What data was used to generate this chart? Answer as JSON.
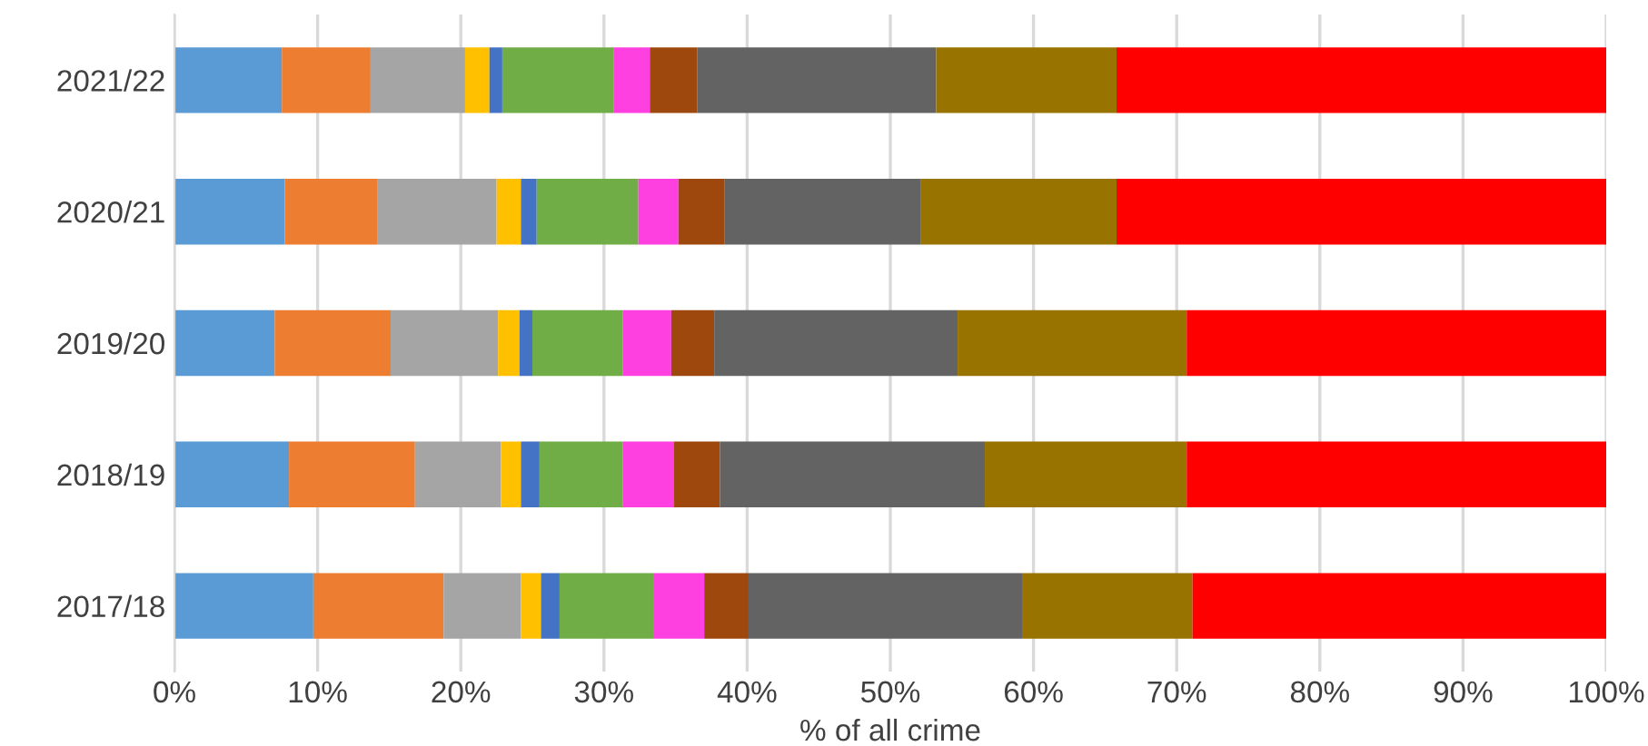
{
  "chart_data": {
    "type": "bar",
    "orientation": "horizontal",
    "stacked": true,
    "xlabel": "% of all crime",
    "categories": [
      "2021/22",
      "2020/21",
      "2019/20",
      "2018/19",
      "2017/18"
    ],
    "series": [
      {
        "color": "#5b9bd5",
        "values": [
          7.5,
          7.7,
          7.0,
          8.0,
          9.7
        ]
      },
      {
        "color": "#ed7d31",
        "values": [
          6.2,
          6.5,
          8.1,
          8.8,
          9.1
        ]
      },
      {
        "color": "#a5a5a5",
        "values": [
          6.6,
          8.3,
          7.5,
          6.0,
          5.4
        ]
      },
      {
        "color": "#ffc000",
        "values": [
          1.7,
          1.7,
          1.5,
          1.4,
          1.4
        ]
      },
      {
        "color": "#4472c4",
        "values": [
          0.9,
          1.1,
          0.9,
          1.3,
          1.3
        ]
      },
      {
        "color": "#70ad47",
        "values": [
          7.8,
          7.1,
          6.3,
          5.8,
          6.6
        ]
      },
      {
        "color": "#ff40e0",
        "values": [
          2.5,
          2.8,
          3.4,
          3.6,
          3.5
        ]
      },
      {
        "color": "#9e480e",
        "values": [
          3.3,
          3.2,
          3.0,
          3.2,
          3.1
        ]
      },
      {
        "color": "#636363",
        "values": [
          16.7,
          13.7,
          17.0,
          18.5,
          19.1
        ]
      },
      {
        "color": "#997300",
        "values": [
          12.6,
          13.7,
          16.0,
          14.1,
          11.9
        ]
      },
      {
        "color": "#ff0000",
        "values": [
          34.2,
          34.2,
          29.3,
          29.3,
          28.9
        ]
      }
    ],
    "xlim": [
      0,
      100
    ],
    "xticks": [
      {
        "value": 0,
        "label": "0%"
      },
      {
        "value": 10,
        "label": "10%"
      },
      {
        "value": 20,
        "label": "20%"
      },
      {
        "value": 30,
        "label": "30%"
      },
      {
        "value": 40,
        "label": "40%"
      },
      {
        "value": 50,
        "label": "50%"
      },
      {
        "value": 60,
        "label": "60%"
      },
      {
        "value": 70,
        "label": "70%"
      },
      {
        "value": 80,
        "label": "80%"
      },
      {
        "value": 90,
        "label": "90%"
      },
      {
        "value": 100,
        "label": "100%"
      }
    ],
    "grid": "x"
  }
}
